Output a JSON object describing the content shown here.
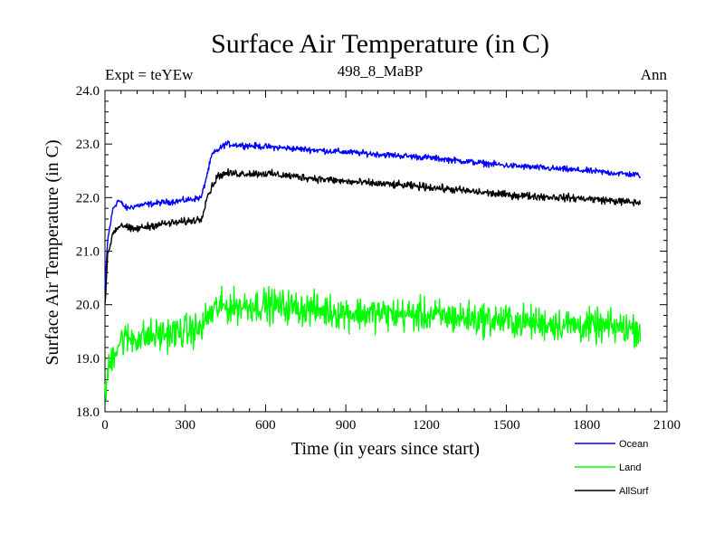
{
  "chart_data": {
    "type": "line",
    "title": "Surface Air Temperature (in C)",
    "subtitle_left": "Expt = teYEw",
    "subtitle_center": "498_8_MaBP",
    "subtitle_right": "Ann",
    "xlabel": "Time (in years since start)",
    "ylabel": "Surface Air Temperature (in C)",
    "xlim": [
      0,
      2100
    ],
    "ylim": [
      18.0,
      24.0
    ],
    "xticks": [
      0,
      300,
      600,
      900,
      1200,
      1500,
      1800,
      2100
    ],
    "xtick_labels": [
      "0",
      "300",
      "600",
      "900",
      "1200",
      "1500",
      "1800",
      "2100"
    ],
    "yticks": [
      18.0,
      19.0,
      20.0,
      21.0,
      22.0,
      23.0,
      24.0
    ],
    "ytick_labels": [
      "18.0",
      "19.0",
      "20.0",
      "21.0",
      "22.0",
      "23.0",
      "24.0"
    ],
    "x_end": 2000,
    "legend_position": "bottom-right-outside",
    "series": [
      {
        "name": "Ocean",
        "color": "#0000ff",
        "noise": 0.04,
        "anchors": [
          [
            0,
            20.3
          ],
          [
            10,
            21.2
          ],
          [
            30,
            21.8
          ],
          [
            50,
            21.95
          ],
          [
            80,
            21.8
          ],
          [
            120,
            21.85
          ],
          [
            200,
            21.9
          ],
          [
            300,
            21.95
          ],
          [
            360,
            22.0
          ],
          [
            380,
            22.4
          ],
          [
            400,
            22.8
          ],
          [
            450,
            23.0
          ],
          [
            600,
            22.95
          ],
          [
            900,
            22.85
          ],
          [
            1200,
            22.75
          ],
          [
            1500,
            22.6
          ],
          [
            1800,
            22.5
          ],
          [
            2000,
            22.42
          ]
        ]
      },
      {
        "name": "Land",
        "color": "#00ff00",
        "noise": 0.22,
        "anchors": [
          [
            0,
            18.2
          ],
          [
            10,
            18.7
          ],
          [
            30,
            19.1
          ],
          [
            60,
            19.35
          ],
          [
            150,
            19.4
          ],
          [
            300,
            19.5
          ],
          [
            360,
            19.55
          ],
          [
            380,
            19.75
          ],
          [
            420,
            19.95
          ],
          [
            600,
            20.0
          ],
          [
            900,
            19.85
          ],
          [
            1200,
            19.8
          ],
          [
            1500,
            19.7
          ],
          [
            1800,
            19.6
          ],
          [
            2000,
            19.55
          ]
        ]
      },
      {
        "name": "AllSurf",
        "color": "#000000",
        "noise": 0.05,
        "anchors": [
          [
            0,
            20.0
          ],
          [
            10,
            20.9
          ],
          [
            30,
            21.35
          ],
          [
            60,
            21.5
          ],
          [
            100,
            21.4
          ],
          [
            200,
            21.5
          ],
          [
            300,
            21.55
          ],
          [
            360,
            21.6
          ],
          [
            380,
            22.0
          ],
          [
            420,
            22.4
          ],
          [
            450,
            22.45
          ],
          [
            600,
            22.45
          ],
          [
            900,
            22.3
          ],
          [
            1200,
            22.2
          ],
          [
            1500,
            22.05
          ],
          [
            1800,
            21.98
          ],
          [
            2000,
            21.9
          ]
        ]
      }
    ]
  }
}
